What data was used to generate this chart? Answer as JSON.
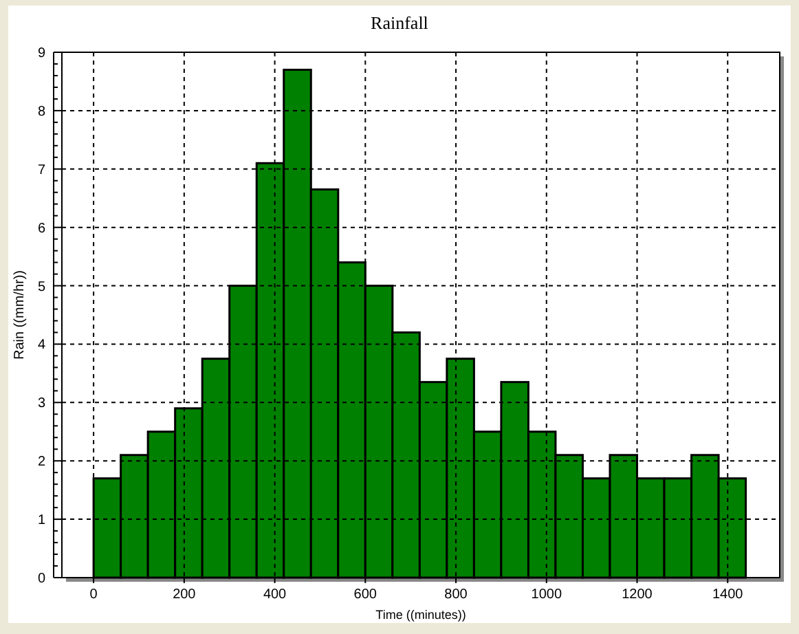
{
  "chart_data": {
    "type": "histogram",
    "title": "Rainfall",
    "xlabel": "Time  ((minutes))",
    "ylabel": "Rain  ((mm/hr))",
    "bins": [
      0,
      60,
      120,
      180,
      240,
      300,
      360,
      420,
      480,
      540,
      600,
      660,
      720,
      780,
      840,
      900,
      960,
      1020,
      1080,
      1140,
      1200,
      1260,
      1320,
      1380,
      1440
    ],
    "values": [
      1.7,
      2.1,
      2.5,
      2.9,
      3.75,
      5.0,
      7.1,
      8.7,
      6.65,
      5.4,
      5.0,
      4.2,
      3.35,
      3.75,
      2.5,
      3.35,
      2.5,
      2.1,
      1.7,
      2.1,
      1.7,
      1.7,
      2.1,
      1.7
    ],
    "color": "#008000",
    "xlim": [
      -70,
      1515
    ],
    "xticks": [
      0,
      200,
      400,
      600,
      800,
      1000,
      1200,
      1400
    ],
    "ylim": [
      0,
      9
    ],
    "yticks": [
      0,
      {
        "value": 0.2,
        "label": null
      },
      {
        "value": 0.4,
        "label": null
      },
      {
        "value": 0.6,
        "label": null
      },
      {
        "value": 0.8,
        "label": null
      },
      1,
      {
        "value": 1.2,
        "label": null
      },
      {
        "value": 1.4,
        "label": null
      },
      {
        "value": 1.6,
        "label": null
      },
      {
        "value": 1.8,
        "label": null
      },
      2,
      {
        "value": 2.2,
        "label": null
      },
      {
        "value": 2.4,
        "label": null
      },
      {
        "value": 2.6,
        "label": null
      },
      {
        "value": 2.8,
        "label": null
      },
      3,
      {
        "value": 3.2,
        "label": null
      },
      {
        "value": 3.4,
        "label": null
      },
      {
        "value": 3.6,
        "label": null
      },
      {
        "value": 3.8,
        "label": null
      },
      4,
      {
        "value": 4.2,
        "label": null
      },
      {
        "value": 4.4,
        "label": null
      },
      {
        "value": 4.6,
        "label": null
      },
      {
        "value": 4.8,
        "label": null
      },
      5,
      {
        "value": 5.2,
        "label": null
      },
      {
        "value": 5.4,
        "label": null
      },
      {
        "value": 5.6,
        "label": null
      },
      {
        "value": 5.8,
        "label": null
      },
      6,
      {
        "value": 6.2,
        "label": null
      },
      {
        "value": 6.4,
        "label": null
      },
      {
        "value": 6.6,
        "label": null
      },
      {
        "value": 6.8,
        "label": null
      },
      7,
      {
        "value": 7.2,
        "label": null
      },
      {
        "value": 7.4,
        "label": null
      },
      {
        "value": 7.6,
        "label": null
      },
      {
        "value": 7.8,
        "label": null
      },
      8,
      {
        "value": 8.2,
        "label": null
      },
      {
        "value": 8.4,
        "label": null
      },
      {
        "value": 8.6,
        "label": null
      },
      {
        "value": 8.8,
        "label": null
      },
      9
    ],
    "grid": true
  }
}
